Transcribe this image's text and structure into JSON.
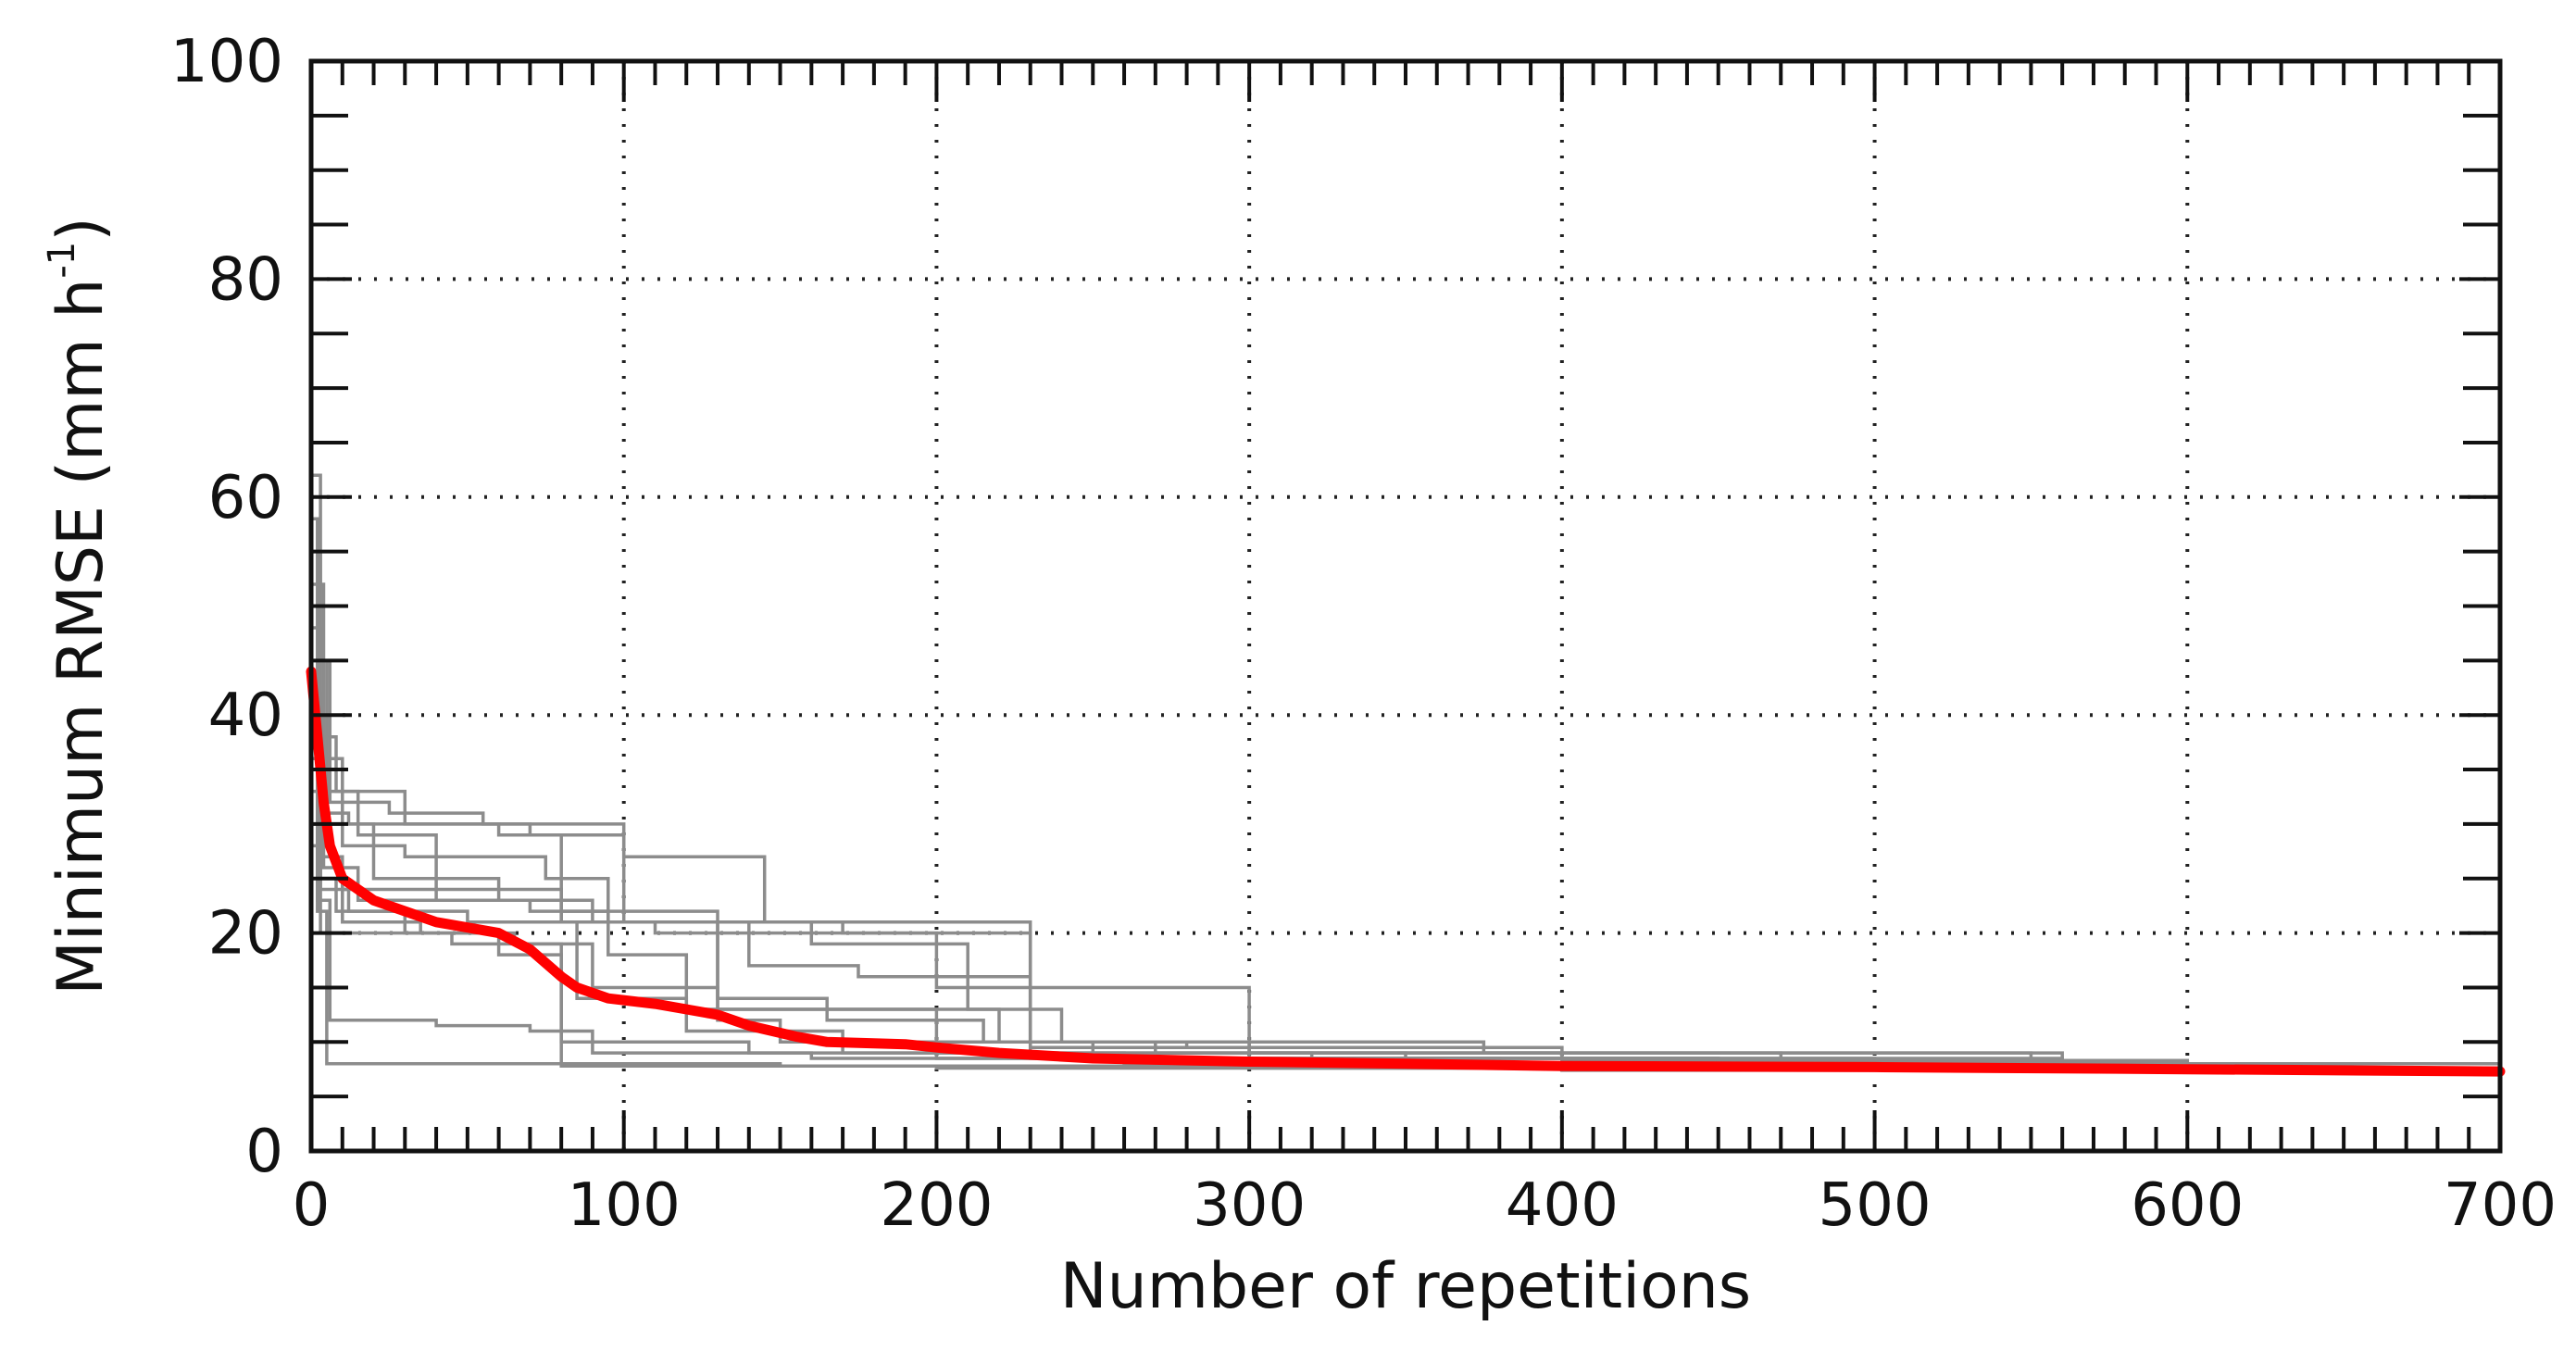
{
  "chart_data": {
    "type": "line",
    "title": "",
    "xlabel": "Number of repetitions",
    "ylabel": {
      "text": "Minimum RMSE (mm h",
      "sup": "-1",
      "close": ")"
    },
    "xlim": [
      0,
      700
    ],
    "ylim": [
      0,
      100
    ],
    "xticks": [
      0,
      100,
      200,
      300,
      400,
      500,
      600,
      700
    ],
    "yticks": [
      0,
      20,
      40,
      60,
      80,
      100
    ],
    "grid": true,
    "legend": "none",
    "colors": {
      "runs": "#8c8c8c",
      "mean": "#ff0000",
      "axes": "#111111",
      "grid": "#222222"
    },
    "series": [
      {
        "role": "run",
        "points": [
          [
            0,
            62
          ],
          [
            3,
            45
          ],
          [
            6,
            32
          ],
          [
            10,
            28
          ],
          [
            30,
            27
          ],
          [
            75,
            25
          ],
          [
            95,
            21
          ],
          [
            130,
            13
          ],
          [
            220,
            10
          ],
          [
            280,
            9.5
          ],
          [
            400,
            8.5
          ],
          [
            550,
            8
          ],
          [
            600,
            7.5
          ],
          [
            700,
            7.2
          ]
        ]
      },
      {
        "role": "run",
        "points": [
          [
            0,
            58
          ],
          [
            2,
            40
          ],
          [
            5,
            31
          ],
          [
            12,
            30
          ],
          [
            60,
            29
          ],
          [
            100,
            27
          ],
          [
            145,
            21
          ],
          [
            230,
            9.5
          ],
          [
            300,
            9
          ],
          [
            470,
            8
          ],
          [
            600,
            7.5
          ],
          [
            700,
            7.2
          ]
        ]
      },
      {
        "role": "run",
        "points": [
          [
            0,
            55
          ],
          [
            3,
            38
          ],
          [
            8,
            33
          ],
          [
            30,
            30
          ],
          [
            70,
            29
          ],
          [
            80,
            21
          ],
          [
            110,
            20
          ],
          [
            160,
            19
          ],
          [
            210,
            13
          ],
          [
            240,
            10
          ],
          [
            375,
            9
          ],
          [
            560,
            8
          ],
          [
            600,
            7.5
          ],
          [
            700,
            7.2
          ]
        ]
      },
      {
        "role": "run",
        "points": [
          [
            0,
            52
          ],
          [
            4,
            36
          ],
          [
            10,
            32
          ],
          [
            25,
            31
          ],
          [
            55,
            30
          ],
          [
            100,
            21
          ],
          [
            160,
            20
          ],
          [
            200,
            15
          ],
          [
            230,
            9
          ],
          [
            320,
            8.5
          ],
          [
            450,
            8
          ],
          [
            600,
            7.5
          ],
          [
            700,
            7.2
          ]
        ]
      },
      {
        "role": "run",
        "points": [
          [
            0,
            48
          ],
          [
            3,
            33
          ],
          [
            15,
            29
          ],
          [
            40,
            24
          ],
          [
            80,
            22
          ],
          [
            130,
            21
          ],
          [
            170,
            20
          ],
          [
            230,
            15
          ],
          [
            300,
            9
          ],
          [
            550,
            8.5
          ],
          [
            560,
            8
          ],
          [
            700,
            7.2
          ]
        ]
      },
      {
        "role": "run",
        "points": [
          [
            0,
            45
          ],
          [
            5,
            30
          ],
          [
            20,
            25
          ],
          [
            60,
            23
          ],
          [
            90,
            21
          ],
          [
            140,
            17
          ],
          [
            175,
            16
          ],
          [
            230,
            10
          ],
          [
            270,
            9
          ],
          [
            400,
            8.3
          ],
          [
            600,
            7.6
          ],
          [
            700,
            7.2
          ]
        ]
      },
      {
        "role": "run",
        "points": [
          [
            0,
            42
          ],
          [
            3,
            27
          ],
          [
            10,
            24
          ],
          [
            40,
            23
          ],
          [
            80,
            21
          ],
          [
            130,
            12
          ],
          [
            150,
            10
          ],
          [
            200,
            9
          ],
          [
            260,
            8.5
          ],
          [
            450,
            8
          ],
          [
            600,
            7.5
          ],
          [
            700,
            7.2
          ]
        ]
      },
      {
        "role": "run",
        "points": [
          [
            0,
            40
          ],
          [
            4,
            26
          ],
          [
            15,
            23
          ],
          [
            70,
            22
          ],
          [
            95,
            18
          ],
          [
            120,
            13
          ],
          [
            200,
            10
          ],
          [
            300,
            8.5
          ],
          [
            450,
            8
          ],
          [
            600,
            7.5
          ],
          [
            700,
            7.2
          ]
        ]
      },
      {
        "role": "run",
        "points": [
          [
            0,
            37
          ],
          [
            2,
            25
          ],
          [
            8,
            22
          ],
          [
            30,
            20
          ],
          [
            60,
            18
          ],
          [
            80,
            10
          ],
          [
            140,
            9
          ],
          [
            200,
            8.5
          ],
          [
            370,
            8
          ],
          [
            560,
            7.6
          ],
          [
            700,
            7.2
          ]
        ]
      },
      {
        "role": "run",
        "points": [
          [
            0,
            35
          ],
          [
            3,
            24
          ],
          [
            12,
            22
          ],
          [
            50,
            21
          ],
          [
            85,
            14
          ],
          [
            120,
            11
          ],
          [
            170,
            9
          ],
          [
            230,
            8.5
          ],
          [
            380,
            8
          ],
          [
            600,
            7.5
          ],
          [
            700,
            7.2
          ]
        ]
      },
      {
        "role": "run",
        "points": [
          [
            0,
            33
          ],
          [
            2,
            23
          ],
          [
            6,
            20
          ],
          [
            45,
            19
          ],
          [
            80,
            8
          ],
          [
            150,
            7.8
          ],
          [
            300,
            7.6
          ],
          [
            450,
            7.5
          ],
          [
            700,
            7.2
          ]
        ]
      },
      {
        "role": "run",
        "points": [
          [
            0,
            30
          ],
          [
            3,
            20
          ],
          [
            6,
            12
          ],
          [
            40,
            11.5
          ],
          [
            70,
            11
          ],
          [
            90,
            9
          ],
          [
            160,
            8.5
          ],
          [
            260,
            8
          ],
          [
            400,
            7.8
          ],
          [
            600,
            7.5
          ],
          [
            700,
            7.2
          ]
        ]
      },
      {
        "role": "run",
        "points": [
          [
            0,
            28
          ],
          [
            2,
            22
          ],
          [
            5,
            8
          ],
          [
            80,
            7.8
          ],
          [
            200,
            7.6
          ],
          [
            400,
            7.4
          ],
          [
            700,
            7.2
          ]
        ]
      },
      {
        "role": "run",
        "points": [
          [
            0,
            36
          ],
          [
            3,
            25
          ],
          [
            10,
            21
          ],
          [
            35,
            20
          ],
          [
            65,
            19
          ],
          [
            90,
            15
          ],
          [
            130,
            14
          ],
          [
            165,
            12
          ],
          [
            215,
            10
          ],
          [
            250,
            9
          ],
          [
            350,
            8.5
          ],
          [
            500,
            8
          ],
          [
            600,
            7.5
          ],
          [
            700,
            7.2
          ]
        ]
      },
      {
        "role": "mean",
        "points": [
          [
            0,
            44
          ],
          [
            2,
            38
          ],
          [
            4,
            32
          ],
          [
            6,
            28
          ],
          [
            10,
            25
          ],
          [
            15,
            24
          ],
          [
            20,
            23
          ],
          [
            30,
            22
          ],
          [
            40,
            21
          ],
          [
            50,
            20.5
          ],
          [
            60,
            20
          ],
          [
            70,
            18.5
          ],
          [
            80,
            16
          ],
          [
            85,
            15
          ],
          [
            95,
            14
          ],
          [
            110,
            13.5
          ],
          [
            120,
            13
          ],
          [
            130,
            12.5
          ],
          [
            140,
            11.5
          ],
          [
            155,
            10.5
          ],
          [
            165,
            10
          ],
          [
            190,
            9.8
          ],
          [
            200,
            9.5
          ],
          [
            220,
            9
          ],
          [
            250,
            8.5
          ],
          [
            300,
            8.2
          ],
          [
            350,
            8
          ],
          [
            400,
            7.8
          ],
          [
            500,
            7.7
          ],
          [
            600,
            7.5
          ],
          [
            700,
            7.3
          ]
        ]
      }
    ]
  }
}
